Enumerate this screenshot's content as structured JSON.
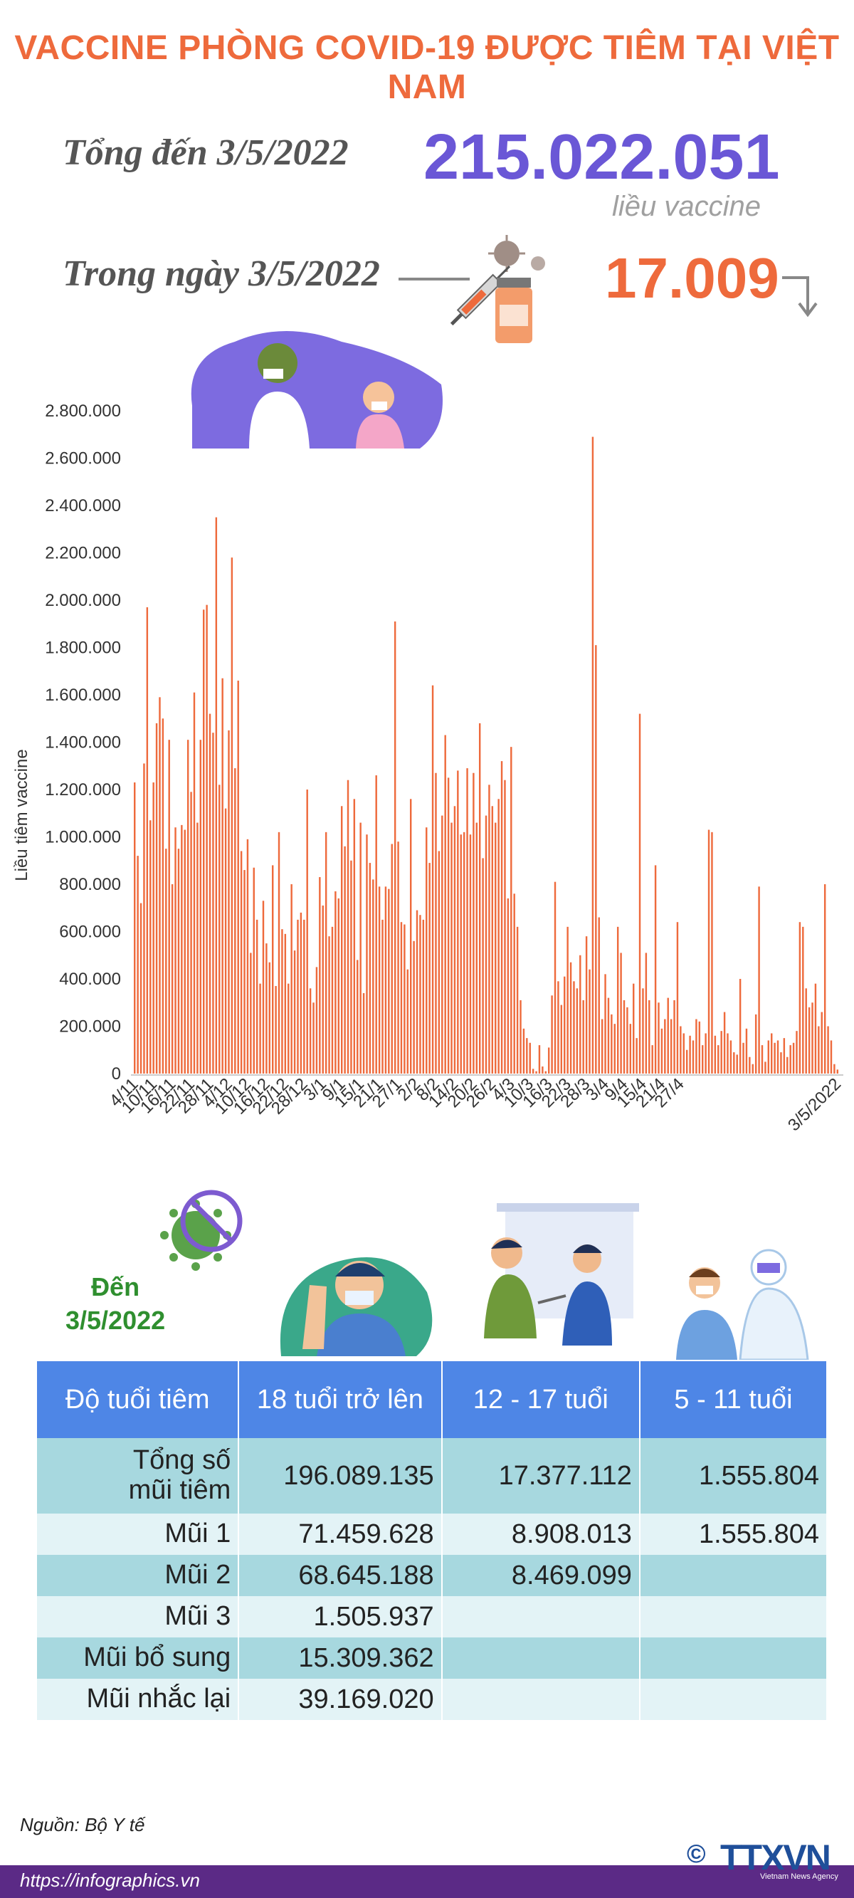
{
  "header": {
    "title": "VACCINE PHÒNG COVID-19 ĐƯỢC TIÊM TẠI VIỆT NAM",
    "total_label": "Tổng đến 3/5/2022",
    "total_value": "215.022.051",
    "total_unit": "liều vaccine",
    "day_label": "Trong ngày 3/5/2022",
    "day_value": "17.009"
  },
  "colors": {
    "title": "#ee6a3c",
    "total_value": "#6a57d6",
    "bar": "#ee6a3c",
    "table_header": "#4e86e6",
    "row_dark": "#a7d8df",
    "row_light": "#e3f3f6",
    "footer": "#5b2a86",
    "to_date_text": "#2f8f2f"
  },
  "icons": [
    "syringe-vial-icon",
    "virus-icon",
    "down-arrow-icon",
    "doctor-child-illustration",
    "no-virus-icon",
    "adult-vaccinated-illustration",
    "teen-vaccination-illustration",
    "child-vaccination-illustration"
  ],
  "chart_data": {
    "type": "bar",
    "ylabel": "Liều tiêm vaccine",
    "ylim": [
      0,
      2800000
    ],
    "yticks": [
      "0",
      "200.000",
      "400.000",
      "600.000",
      "800.000",
      "1.000.000",
      "1.200.000",
      "1.400.000",
      "1.600.000",
      "1.800.000",
      "2.000.000",
      "2.200.000",
      "2.400.000",
      "2.600.000",
      "2.800.000"
    ],
    "x_tick_labels": [
      "4/11",
      "10/11",
      "16/11",
      "22/11",
      "28/11",
      "4/12",
      "10/12",
      "16/12",
      "22/12",
      "28/12",
      "3/1",
      "9/1",
      "15/1",
      "21/1",
      "27/1",
      "2/2",
      "8/2",
      "14/2",
      "20/2",
      "26/2",
      "4/3",
      "10/3",
      "16/3",
      "22/3",
      "28/3",
      "3/4",
      "9/4",
      "15/4",
      "21/4",
      "27/4",
      "3/5/2022"
    ],
    "x_start": "4/11/2021",
    "x_end": "3/5/2022",
    "values": [
      1230000,
      920000,
      720000,
      1310000,
      1970000,
      1070000,
      1230000,
      1480000,
      1590000,
      1500000,
      950000,
      1410000,
      800000,
      1040000,
      950000,
      1050000,
      1030000,
      1410000,
      1190000,
      1610000,
      1060000,
      1410000,
      1960000,
      1980000,
      1520000,
      1440000,
      2350000,
      1220000,
      1670000,
      1120000,
      1450000,
      2180000,
      1290000,
      1660000,
      940000,
      860000,
      990000,
      510000,
      870000,
      650000,
      380000,
      730000,
      550000,
      470000,
      880000,
      370000,
      1020000,
      610000,
      590000,
      380000,
      800000,
      520000,
      650000,
      680000,
      650000,
      1200000,
      360000,
      300000,
      450000,
      830000,
      710000,
      1020000,
      580000,
      620000,
      770000,
      740000,
      1130000,
      960000,
      1240000,
      900000,
      1160000,
      480000,
      1060000,
      340000,
      1010000,
      890000,
      820000,
      1260000,
      790000,
      650000,
      790000,
      780000,
      970000,
      1910000,
      980000,
      640000,
      630000,
      440000,
      1160000,
      560000,
      690000,
      670000,
      650000,
      1040000,
      890000,
      1640000,
      1270000,
      940000,
      1090000,
      1430000,
      1250000,
      1060000,
      1130000,
      1280000,
      1010000,
      1020000,
      1290000,
      1010000,
      1270000,
      1060000,
      1480000,
      910000,
      1090000,
      1220000,
      1130000,
      1060000,
      1160000,
      1320000,
      1240000,
      740000,
      1380000,
      760000,
      620000,
      310000,
      190000,
      150000,
      130000,
      20000,
      10000,
      120000,
      30000,
      10000,
      110000,
      330000,
      810000,
      390000,
      290000,
      410000,
      620000,
      470000,
      390000,
      360000,
      500000,
      310000,
      580000,
      440000,
      2690000,
      1810000,
      660000,
      230000,
      420000,
      320000,
      250000,
      210000,
      620000,
      510000,
      310000,
      280000,
      210000,
      380000,
      150000,
      1520000,
      360000,
      510000,
      310000,
      120000,
      880000,
      300000,
      190000,
      230000,
      320000,
      230000,
      310000,
      640000,
      200000,
      170000,
      100000,
      160000,
      140000,
      230000,
      220000,
      120000,
      170000,
      1030000,
      1020000,
      160000,
      120000,
      180000,
      260000,
      170000,
      140000,
      90000,
      80000,
      400000,
      130000,
      190000,
      70000,
      40000,
      250000,
      790000,
      120000,
      50000,
      140000,
      170000,
      130000,
      140000,
      90000,
      150000,
      70000,
      120000,
      130000,
      180000,
      640000,
      620000,
      360000,
      280000,
      300000,
      380000,
      200000,
      260000,
      800000,
      200000,
      140000,
      40000,
      17009
    ]
  },
  "to_date": [
    "Đến",
    "3/5/2022"
  ],
  "table": {
    "headers": [
      "Độ tuổi tiêm",
      "18 tuổi trở lên",
      "12 - 17 tuổi",
      "5 - 11 tuổi"
    ],
    "rows": [
      {
        "label": "Tổng số mũi tiêm",
        "v18": "196.089.135",
        "v12": "17.377.112",
        "v5": "1.555.804"
      },
      {
        "label": "Mũi 1",
        "v18": "71.459.628",
        "v12": "8.908.013",
        "v5": "1.555.804"
      },
      {
        "label": "Mũi 2",
        "v18": "68.645.188",
        "v12": "8.469.099",
        "v5": ""
      },
      {
        "label": "Mũi 3",
        "v18": "1.505.937",
        "v12": "",
        "v5": ""
      },
      {
        "label": "Mũi bổ sung",
        "v18": "15.309.362",
        "v12": "",
        "v5": ""
      },
      {
        "label": "Mũi nhắc lại",
        "v18": "39.169.020",
        "v12": "",
        "v5": ""
      }
    ]
  },
  "footer": {
    "source": "Nguồn: Bộ Y tế",
    "url": "https://infographics.vn",
    "logo_text": "TTXVN",
    "logo_sub": "Vietnam News Agency",
    "copyright_symbol": "©"
  }
}
